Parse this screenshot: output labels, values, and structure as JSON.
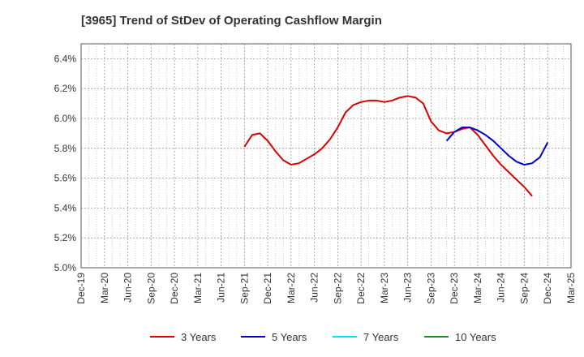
{
  "chart_data": {
    "type": "line",
    "title": "[3965]  Trend of StDev of Operating Cashflow Margin",
    "xlabel": "",
    "ylabel": "",
    "grid": true,
    "legend_position": "bottom",
    "x_tick_labels": [
      "Dec-19",
      "Mar-20",
      "Jun-20",
      "Sep-20",
      "Dec-20",
      "Mar-21",
      "Jun-21",
      "Sep-21",
      "Dec-21",
      "Mar-22",
      "Jun-22",
      "Sep-22",
      "Dec-22",
      "Mar-23",
      "Jun-23",
      "Sep-23",
      "Dec-23",
      "Mar-24",
      "Jun-24",
      "Sep-24",
      "Dec-24",
      "Mar-25"
    ],
    "y_tick_labels": [
      "5.0%",
      "5.2%",
      "5.4%",
      "5.6%",
      "5.8%",
      "6.0%",
      "6.2%",
      "6.4%"
    ],
    "ylim": [
      5.0,
      6.5
    ],
    "series": [
      {
        "name": "3 Years",
        "color": "#dd0000",
        "points": [
          [
            "Sep-21",
            5.81
          ],
          [
            "Oct-21",
            5.89
          ],
          [
            "Nov-21",
            5.9
          ],
          [
            "Dec-21",
            5.85
          ],
          [
            "Jan-22",
            5.78
          ],
          [
            "Feb-22",
            5.72
          ],
          [
            "Mar-22",
            5.69
          ],
          [
            "Apr-22",
            5.7
          ],
          [
            "May-22",
            5.73
          ],
          [
            "Jun-22",
            5.76
          ],
          [
            "Jul-22",
            5.8
          ],
          [
            "Aug-22",
            5.86
          ],
          [
            "Sep-22",
            5.94
          ],
          [
            "Oct-22",
            6.04
          ],
          [
            "Nov-22",
            6.09
          ],
          [
            "Dec-22",
            6.11
          ],
          [
            "Jan-23",
            6.12
          ],
          [
            "Feb-23",
            6.12
          ],
          [
            "Mar-23",
            6.11
          ],
          [
            "Apr-23",
            6.12
          ],
          [
            "May-23",
            6.14
          ],
          [
            "Jun-23",
            6.15
          ],
          [
            "Jul-23",
            6.14
          ],
          [
            "Aug-23",
            6.1
          ],
          [
            "Sep-23",
            5.98
          ],
          [
            "Oct-23",
            5.92
          ],
          [
            "Nov-23",
            5.9
          ],
          [
            "Dec-23",
            5.91
          ],
          [
            "Jan-24",
            5.93
          ],
          [
            "Feb-24",
            5.94
          ],
          [
            "Mar-24",
            5.89
          ],
          [
            "Apr-24",
            5.82
          ],
          [
            "May-24",
            5.75
          ],
          [
            "Jun-24",
            5.69
          ],
          [
            "Jul-24",
            5.64
          ],
          [
            "Aug-24",
            5.59
          ],
          [
            "Sep-24",
            5.54
          ],
          [
            "Oct-24",
            5.48
          ]
        ]
      },
      {
        "name": "5 Years",
        "color": "#0000cc",
        "points": [
          [
            "Nov-23",
            5.85
          ],
          [
            "Dec-23",
            5.91
          ],
          [
            "Jan-24",
            5.94
          ],
          [
            "Feb-24",
            5.94
          ],
          [
            "Mar-24",
            5.92
          ],
          [
            "Apr-24",
            5.89
          ],
          [
            "May-24",
            5.85
          ],
          [
            "Jun-24",
            5.8
          ],
          [
            "Jul-24",
            5.75
          ],
          [
            "Aug-24",
            5.71
          ],
          [
            "Sep-24",
            5.69
          ],
          [
            "Oct-24",
            5.7
          ],
          [
            "Nov-24",
            5.74
          ],
          [
            "Dec-24",
            5.84
          ]
        ]
      },
      {
        "name": "7 Years",
        "color": "#00e5ee",
        "points": []
      },
      {
        "name": "10 Years",
        "color": "#228b22",
        "points": []
      }
    ]
  }
}
